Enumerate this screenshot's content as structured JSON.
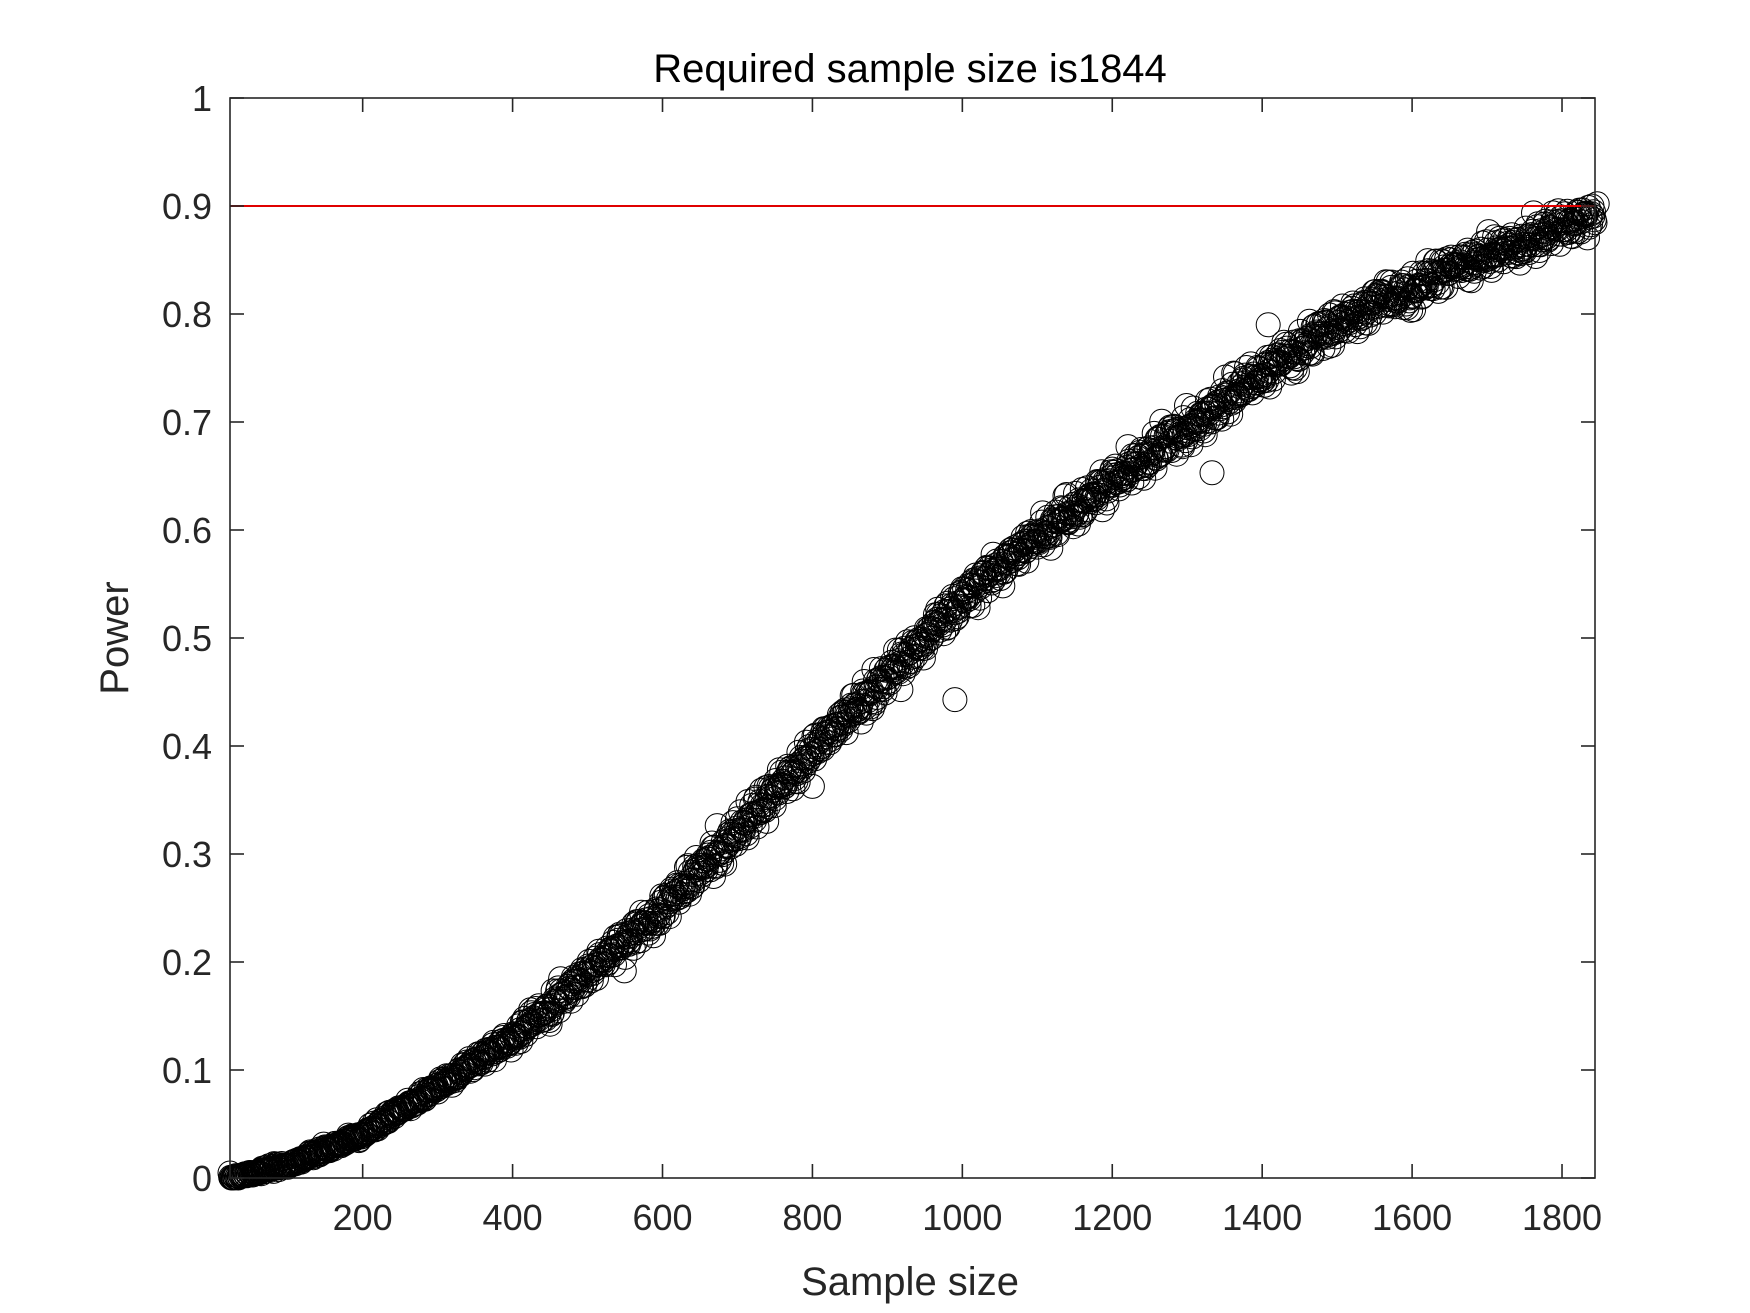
{
  "chart_data": {
    "type": "scatter",
    "title": "Required sample size is1844",
    "xlabel": "Sample size",
    "ylabel": "Power",
    "xlim": [
      23,
      1844
    ],
    "ylim": [
      0,
      1
    ],
    "x_ticks": [
      200,
      400,
      600,
      800,
      1000,
      1200,
      1400,
      1600,
      1800
    ],
    "y_ticks": [
      0,
      0.1,
      0.2,
      0.3,
      0.4,
      0.5,
      0.6,
      0.7,
      0.8,
      0.9,
      1
    ],
    "y_tick_labels": [
      "0",
      "0.1",
      "0.2",
      "0.3",
      "0.4",
      "0.5",
      "0.6",
      "0.7",
      "0.8",
      "0.9",
      "1"
    ],
    "grid": false,
    "marker": "open-circle",
    "marker_color": "#000000",
    "reference_line": {
      "y": 0.9,
      "color": "#e00000"
    },
    "series": [
      {
        "x_range": [
          23,
          1844
        ],
        "x_step": 1,
        "points": [
          [
            23,
            0.0
          ],
          [
            100,
            0.012
          ],
          [
            200,
            0.04
          ],
          [
            300,
            0.085
          ],
          [
            400,
            0.13
          ],
          [
            500,
            0.19
          ],
          [
            600,
            0.25
          ],
          [
            700,
            0.32
          ],
          [
            800,
            0.395
          ],
          [
            900,
            0.465
          ],
          [
            1000,
            0.535
          ],
          [
            1100,
            0.595
          ],
          [
            1200,
            0.645
          ],
          [
            1300,
            0.695
          ],
          [
            1400,
            0.745
          ],
          [
            1500,
            0.79
          ],
          [
            1600,
            0.825
          ],
          [
            1700,
            0.855
          ],
          [
            1800,
            0.88
          ],
          [
            1844,
            0.89
          ]
        ],
        "noise_sd": 0.008
      }
    ],
    "outliers": [
      [
        990,
        0.443
      ],
      [
        1333,
        0.653
      ],
      [
        1408,
        0.79
      ],
      [
        1847,
        0.902
      ]
    ]
  }
}
